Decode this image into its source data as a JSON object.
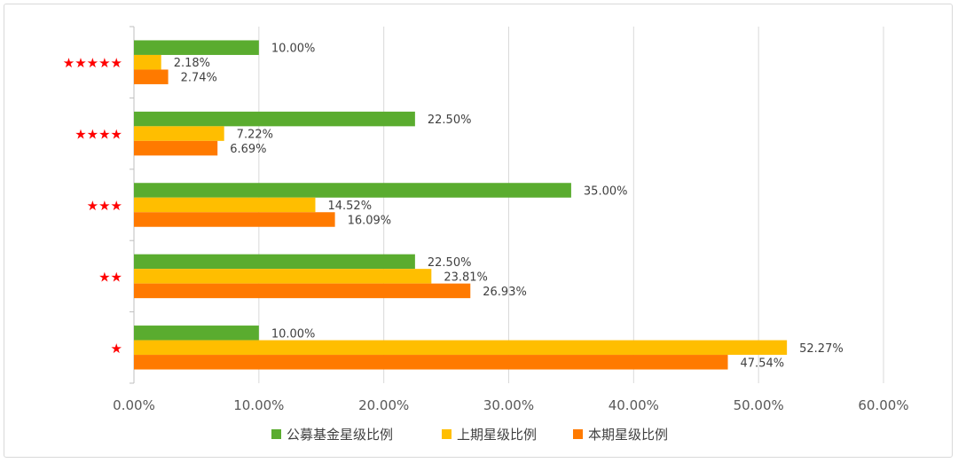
{
  "chart_data": {
    "type": "bar",
    "orientation": "horizontal",
    "categories": [
      "★★★★★",
      "★★★★",
      "★★★",
      "★★",
      "★"
    ],
    "series": [
      {
        "name": "公募基金星级比例",
        "color": "#5aac2f",
        "values": [
          10.0,
          22.5,
          35.0,
          22.5,
          10.0
        ],
        "labels": [
          "10.00%",
          "22.50%",
          "35.00%",
          "22.50%",
          "10.00%"
        ]
      },
      {
        "name": "上期星级比例",
        "color": "#ffbe00",
        "values": [
          2.18,
          7.22,
          14.52,
          23.81,
          52.27
        ],
        "labels": [
          "2.18%",
          "7.22%",
          "14.52%",
          "23.81%",
          "52.27%"
        ]
      },
      {
        "name": "本期星级比例",
        "color": "#ff7a00",
        "values": [
          2.74,
          6.69,
          16.09,
          26.93,
          47.54
        ],
        "labels": [
          "2.74%",
          "6.69%",
          "16.09%",
          "26.93%",
          "47.54%"
        ]
      }
    ],
    "x_ticks": [
      "0.00%",
      "10.00%",
      "20.00%",
      "30.00%",
      "40.00%",
      "50.00%",
      "60.00%"
    ],
    "xlim": [
      0,
      60
    ],
    "grid": "vertical",
    "legend": "bottom",
    "category_color": "#ff0000"
  }
}
